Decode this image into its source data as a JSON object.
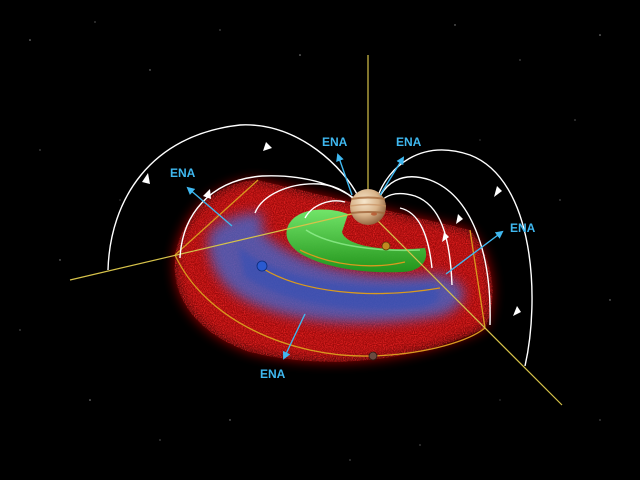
{
  "diagram": {
    "subject": "Jupiter magnetosphere cutaway",
    "ena_labels": [
      {
        "id": "ena-top-left",
        "text": "ENA"
      },
      {
        "id": "ena-top-center",
        "text": "ENA"
      },
      {
        "id": "ena-top-right",
        "text": "ENA"
      },
      {
        "id": "ena-right",
        "text": "ENA"
      },
      {
        "id": "ena-bottom",
        "text": "ENA"
      }
    ],
    "colors": {
      "background": "#000000",
      "ena_text": "#3fb8f0",
      "ena_arrow": "#3fb8f0",
      "field_lines": "#ffffff",
      "orbit_lines": "#d99a1f",
      "axis_lines": "#d6c24a",
      "plasma_red": "#d01010",
      "plasma_blue": "#3a6cd8",
      "torus_green": "#30d030",
      "jupiter": "#e4c8a0"
    }
  }
}
